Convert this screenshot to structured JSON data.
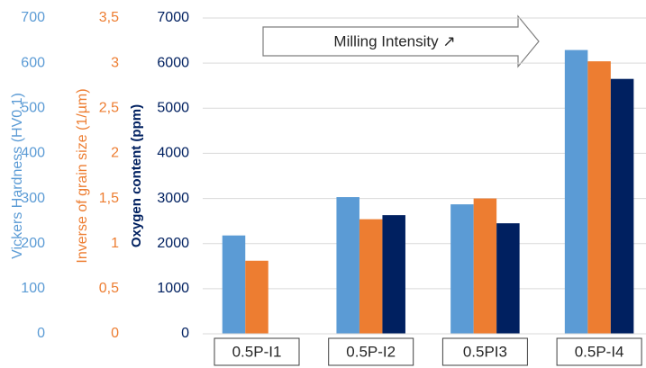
{
  "chart_data": {
    "type": "bar",
    "y_label": "Vickers Hardness (HV0.1)",
    "y2_label": "Inverse of grain size (1/µm)",
    "y3_label": "Oxygen content (ppm)",
    "annotation": "Milling Intensity ↗",
    "categories": [
      "0.5P-I1",
      "0.5P-I2",
      "0.5PI3",
      "0.5P-I4"
    ],
    "series": [
      {
        "color": "#5b9bd5",
        "axis": "y",
        "values": [
          218,
          303,
          287,
          629
        ]
      },
      {
        "color": "#ed7d31",
        "axis": "y2",
        "values": [
          0.81,
          1.27,
          1.5,
          3.02
        ]
      },
      {
        "color": "#002060",
        "axis": "y3",
        "values": [
          null,
          2630,
          2450,
          5650
        ]
      }
    ],
    "ylim": [
      0,
      700
    ],
    "yticks": [
      0,
      100,
      200,
      300,
      400,
      500,
      600,
      700
    ],
    "y_color": "#5b9bd5",
    "y2lim": [
      0,
      3.5
    ],
    "y2ticks": [
      0,
      {
        "value": 0.5,
        "label": "0,5"
      },
      1,
      {
        "value": 1.5,
        "label": "1,5"
      },
      2,
      {
        "value": 2.5,
        "label": "2,5"
      },
      3,
      {
        "value": 3.5,
        "label": "3,5"
      }
    ],
    "y2_color": "#ed7d31",
    "y3lim": [
      0,
      7000
    ],
    "y3ticks": [
      0,
      1000,
      2000,
      3000,
      4000,
      5000,
      6000,
      7000
    ],
    "y3_color": "#002060",
    "grid": true
  }
}
